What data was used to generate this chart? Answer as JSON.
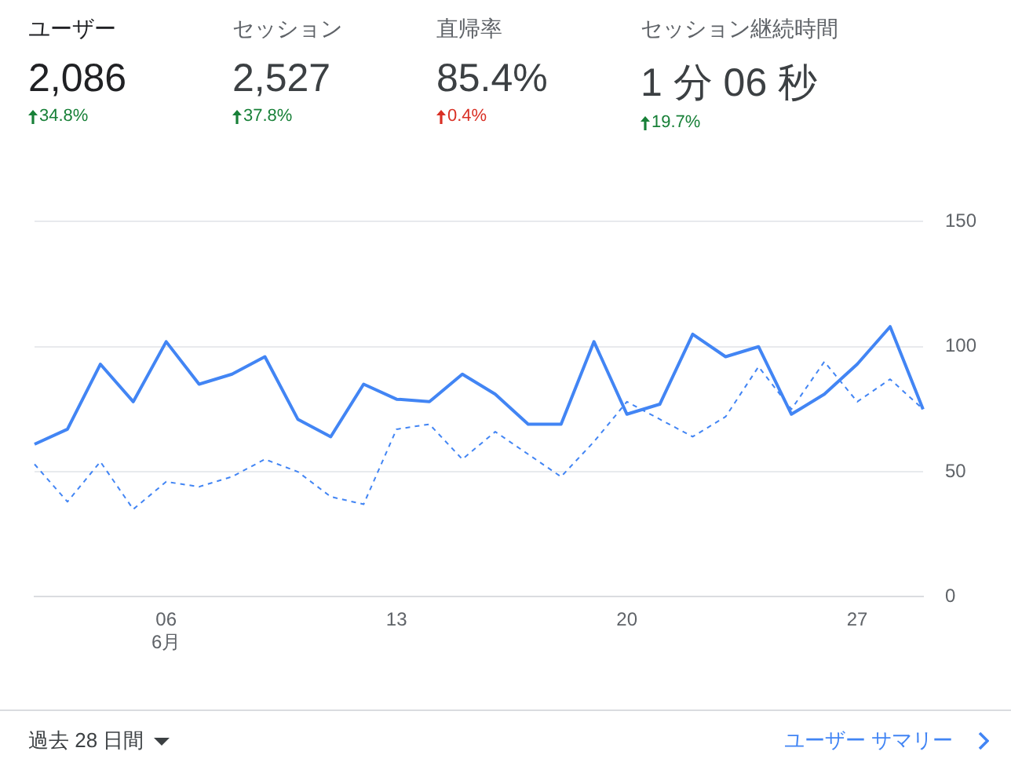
{
  "chart_data": [
    {
      "type": "other",
      "title": "ユーザー",
      "subtitle": "2,086",
      "annotations": [
        "34.8%"
      ],
      "color": "#188038"
    },
    {
      "type": "other",
      "title": "セッション",
      "subtitle": "2,527",
      "annotations": [
        "37.8%"
      ],
      "color": "#188038"
    },
    {
      "type": "other",
      "title": "直帰率",
      "subtitle": "85.4%",
      "annotations": [
        "0.4%"
      ],
      "color": "#d93025"
    },
    {
      "type": "other",
      "title": "セッション継続時間",
      "subtitle": "1 分 06 秒",
      "annotations": [
        "19.7%"
      ],
      "color": "#188038"
    },
    {
      "type": "line",
      "categories": [
        null,
        null,
        null,
        null,
        "06\n6月",
        null,
        null,
        null,
        null,
        null,
        null,
        "13",
        null,
        null,
        null,
        null,
        null,
        null,
        "20",
        null,
        null,
        null,
        null,
        null,
        null,
        "27",
        null,
        null
      ],
      "series": [
        {
          "color": "#4285f4",
          "line_style": "solid",
          "values": [
            61,
            67,
            93,
            78,
            102,
            85,
            89,
            96,
            71,
            64,
            85,
            79,
            78,
            89,
            81,
            69,
            69,
            102,
            73,
            77,
            105,
            96,
            100,
            73,
            81,
            93,
            108,
            75
          ]
        },
        {
          "color": "#4285f4",
          "line_style": "dashed",
          "values": [
            53,
            38,
            54,
            35,
            46,
            44,
            48,
            55,
            50,
            40,
            37,
            67,
            69,
            55,
            66,
            57,
            48,
            62,
            78,
            71,
            64,
            72,
            92,
            75,
            94,
            78,
            87,
            75
          ]
        }
      ],
      "ylim": [
        0,
        150
      ],
      "yticks": [
        0,
        50,
        100,
        150
      ],
      "grid": "y",
      "annotations": [
        "過去 28 日間",
        "ユーザー サマリー"
      ]
    }
  ]
}
